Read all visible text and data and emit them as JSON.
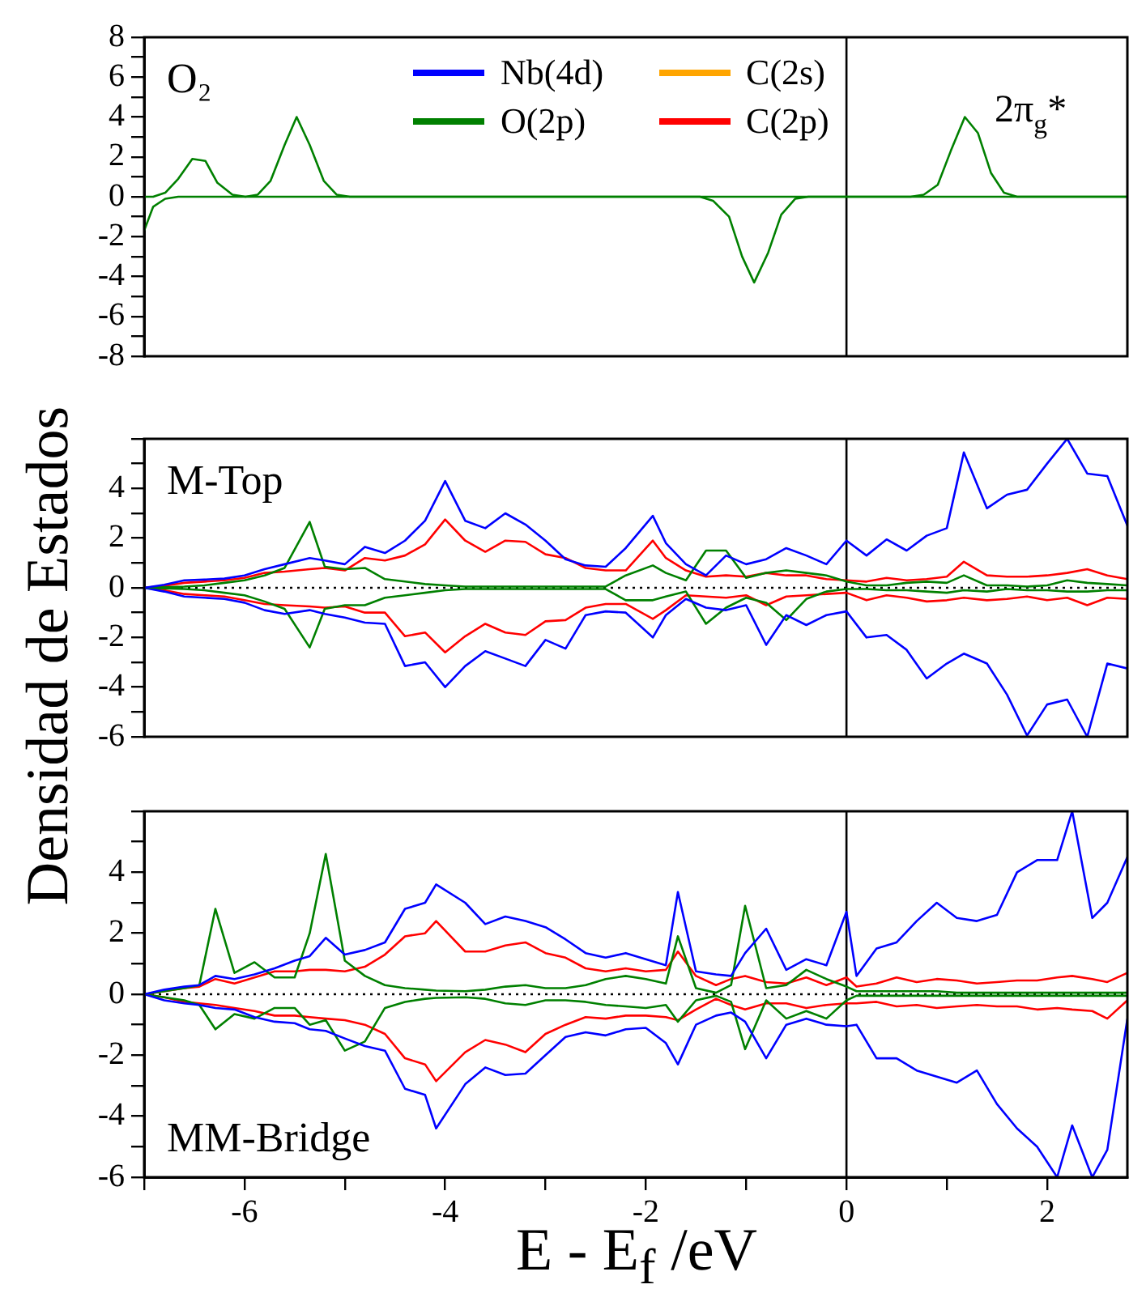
{
  "chart_data": [
    {
      "type": "line",
      "xlim": [
        -7,
        2.8
      ],
      "ylim": [
        -8,
        8
      ],
      "tick_labels": "y",
      "yticks": [
        -8,
        {
          "value": -7,
          "label": null
        },
        -6,
        {
          "value": -5,
          "label": null
        },
        -4,
        {
          "value": -3,
          "label": null
        },
        -2,
        {
          "value": -1,
          "label": null
        },
        0,
        {
          "value": 1,
          "label": null
        },
        2,
        {
          "value": 3,
          "label": null
        },
        4,
        {
          "value": 5,
          "label": null
        },
        6,
        {
          "value": 7,
          "label": null
        },
        8
      ],
      "annotations": [
        "O₂",
        "2π$_{g}$*"
      ],
      "ref_lines": [
        {
          "axis": "x",
          "value": 0,
          "color": "#000000"
        }
      ],
      "series": [
        {
          "color": "#008000",
          "x": [
            -7,
            -6.91,
            -6.79,
            -6.66,
            -6.52,
            -6.39,
            -6.27,
            -6.12,
            -5.99,
            -5.87,
            -5.74,
            -5.6,
            -5.48,
            -5.35,
            -5.21,
            -5.08,
            -4.95,
            0.64,
            0.77,
            0.91,
            1.04,
            1.18,
            1.31,
            1.44,
            1.57,
            1.7,
            2.8
          ],
          "values": [
            0,
            0,
            0.2,
            0.9,
            1.9,
            1.8,
            0.7,
            0.1,
            0,
            0.1,
            0.8,
            2.6,
            4,
            2.6,
            0.8,
            0.1,
            0,
            0,
            0.1,
            0.6,
            2.3,
            4,
            3.2,
            1.2,
            0.2,
            0,
            0
          ]
        },
        {
          "color": "#008000",
          "x": [
            -7,
            -6.91,
            -6.79,
            -6.66,
            -1.46,
            -1.33,
            -1.17,
            -1.04,
            -0.92,
            -0.78,
            -0.65,
            -0.51,
            -0.38,
            2.8
          ],
          "values": [
            -1.7,
            -0.5,
            -0.1,
            0,
            0,
            -0.2,
            -1,
            -3,
            -4.3,
            -2.8,
            -0.9,
            -0.1,
            0,
            0
          ]
        }
      ]
    },
    {
      "type": "line",
      "xlim": [
        -7,
        2.8
      ],
      "ylim": [
        -6,
        6
      ],
      "tick_labels": "y",
      "legend": "top",
      "ylabel": "Densidad de Estados",
      "yticks": [
        -6,
        {
          "value": -5,
          "label": null
        },
        -4,
        {
          "value": -3,
          "label": null
        },
        -2,
        {
          "value": -1,
          "label": null
        },
        0,
        {
          "value": 1,
          "label": null
        },
        2,
        {
          "value": 3,
          "label": null
        },
        4,
        {
          "value": 5,
          "label": null
        },
        {
          "value": 6,
          "label": null
        }
      ],
      "annotations": [
        "M-Top"
      ],
      "ref_lines": [
        {
          "axis": "x",
          "value": 0,
          "color": "#000000"
        },
        {
          "axis": "y",
          "value": 0,
          "color": "#000000",
          "line_style": "dotted"
        }
      ],
      "x": [
        -7,
        -6.8,
        -6.6,
        -6.4,
        -6.2,
        -6,
        -5.8,
        -5.6,
        -5.35,
        -5.2,
        -5,
        -4.8,
        -4.6,
        -4.4,
        -4.2,
        -4,
        -3.8,
        -3.6,
        -3.4,
        -3.2,
        -3,
        -2.8,
        -2.6,
        -2.4,
        -2.2,
        -1.93,
        -1.8,
        -1.6,
        -1.4,
        -1.2,
        -1,
        -0.8,
        -0.6,
        -0.4,
        -0.2,
        0,
        0.2,
        0.4,
        0.6,
        0.8,
        1,
        1.17,
        1.4,
        1.6,
        1.8,
        2,
        2.2,
        2.4,
        2.6,
        2.8
      ],
      "series": [
        {
          "name": "Nb(4d)",
          "color": "#0000ff",
          "values": [
            0,
            0.12,
            0.3,
            0.33,
            0.37,
            0.5,
            0.75,
            0.95,
            1.2,
            1.1,
            0.95,
            1.65,
            1.4,
            1.9,
            2.7,
            4.3,
            2.7,
            2.4,
            3,
            2.55,
            1.9,
            1.15,
            0.9,
            0.85,
            1.6,
            2.9,
            1.8,
            0.95,
            0.5,
            1.3,
            0.95,
            1.15,
            1.6,
            1.3,
            0.95,
            1.9,
            1.3,
            1.95,
            1.5,
            2.1,
            2.4,
            5.45,
            3.2,
            3.75,
            3.95,
            5,
            6,
            4.6,
            4.5,
            2.5
          ]
        },
        {
          "name": "C(2s)",
          "color": "#ffa500",
          "values": [
            null,
            null,
            null,
            null,
            null,
            null,
            null,
            null,
            null,
            null,
            null,
            null,
            null,
            null,
            null,
            null,
            null,
            null,
            null,
            null,
            null,
            null,
            null,
            null,
            null,
            null,
            null,
            null,
            null,
            null,
            null,
            null,
            null,
            null,
            null,
            null,
            null,
            null,
            null,
            null,
            null,
            null,
            null,
            null,
            null,
            null,
            null,
            null,
            null,
            null
          ]
        },
        {
          "name": "O(2p)",
          "color": "#008000",
          "values": [
            0,
            0.02,
            0.05,
            0.1,
            0.2,
            0.3,
            0.5,
            0.8,
            2.65,
            0.85,
            0.75,
            0.8,
            0.35,
            0.25,
            0.15,
            0.1,
            0.05,
            0.05,
            0.05,
            0.05,
            0.05,
            0.05,
            0.05,
            0.05,
            0.5,
            0.9,
            0.6,
            0.3,
            1.5,
            1.5,
            0.4,
            0.6,
            0.7,
            0.6,
            0.5,
            0.25,
            0.1,
            0.1,
            0.2,
            0.25,
            0.2,
            0.5,
            0.1,
            0.1,
            0.05,
            0.1,
            0.3,
            0.2,
            0.15,
            0.1
          ]
        },
        {
          "name": "C(2p)",
          "color": "#ff0000",
          "values": [
            0,
            0.08,
            0.2,
            0.25,
            0.3,
            0.4,
            0.6,
            0.65,
            0.75,
            0.8,
            0.7,
            1.2,
            1.1,
            1.3,
            1.75,
            2.75,
            1.9,
            1.45,
            1.9,
            1.85,
            1.35,
            1.2,
            0.8,
            0.7,
            0.7,
            1.9,
            1.2,
            0.7,
            0.45,
            0.5,
            0.45,
            0.6,
            0.5,
            0.5,
            0.35,
            0.3,
            0.25,
            0.4,
            0.3,
            0.35,
            0.45,
            1.05,
            0.5,
            0.45,
            0.45,
            0.5,
            0.6,
            0.75,
            0.5,
            0.35
          ]
        },
        {
          "color": "#0000ff",
          "values": [
            0,
            -0.15,
            -0.35,
            -0.4,
            -0.45,
            -0.6,
            -0.9,
            -1.05,
            -0.9,
            -1.05,
            -1.2,
            -1.4,
            -1.45,
            -3.15,
            -3,
            -4,
            -3.15,
            -2.55,
            -2.85,
            -3.15,
            -2.1,
            -2.45,
            -1.1,
            -0.95,
            -1,
            -2,
            -1.1,
            -0.45,
            -0.8,
            -0.9,
            -0.7,
            -2.3,
            -1.1,
            -1.5,
            -1.1,
            -0.95,
            -2,
            -1.9,
            -2.5,
            -3.65,
            -3.05,
            -2.65,
            -3.05,
            -4.3,
            -5.95,
            -4.7,
            -4.5,
            -6,
            -3.05,
            -3.25
          ]
        },
        {
          "color": "#008000",
          "values": [
            0,
            -0.02,
            -0.05,
            -0.1,
            -0.2,
            -0.3,
            -0.55,
            -0.85,
            -2.4,
            -0.85,
            -0.7,
            -0.7,
            -0.4,
            -0.3,
            -0.2,
            -0.1,
            -0.05,
            -0.05,
            -0.05,
            -0.05,
            -0.05,
            -0.05,
            -0.05,
            -0.05,
            -0.5,
            -0.5,
            -0.35,
            -0.15,
            -1.45,
            -0.8,
            -0.4,
            -0.6,
            -1.3,
            -0.45,
            -0.15,
            -0.05,
            -0.05,
            -0.1,
            -0.1,
            -0.15,
            -0.2,
            -0.1,
            -0.15,
            -0.05,
            -0.1,
            -0.1,
            -0.15,
            -0.15,
            -0.1,
            -0.1
          ]
        },
        {
          "color": "#ff0000",
          "values": [
            0,
            -0.1,
            -0.25,
            -0.3,
            -0.35,
            -0.5,
            -0.65,
            -0.7,
            -0.75,
            -0.8,
            -0.75,
            -1,
            -1,
            -1.95,
            -1.8,
            -2.6,
            -1.95,
            -1.45,
            -1.8,
            -1.9,
            -1.35,
            -1.3,
            -0.8,
            -0.65,
            -0.65,
            -1.25,
            -0.9,
            -0.3,
            -0.35,
            -0.4,
            -0.3,
            -0.7,
            -0.35,
            -0.3,
            -0.25,
            -0.2,
            -0.5,
            -0.3,
            -0.4,
            -0.55,
            -0.5,
            -0.4,
            -0.5,
            -0.45,
            -0.35,
            -0.5,
            -0.4,
            -0.7,
            -0.4,
            -0.45
          ]
        }
      ]
    },
    {
      "type": "line",
      "xlim": [
        -7,
        2.8
      ],
      "ylim": [
        -6,
        6
      ],
      "xlabel": "E - E$_{f}$ /eV",
      "xticks": [
        {
          "value": -7,
          "label": null
        },
        -6,
        {
          "value": -5,
          "label": null
        },
        -4,
        {
          "value": -3,
          "label": null
        },
        -2,
        {
          "value": -1,
          "label": null
        },
        0,
        {
          "value": 1,
          "label": null
        },
        2
      ],
      "yticks": [
        -6,
        {
          "value": -5,
          "label": null
        },
        -4,
        {
          "value": -3,
          "label": null
        },
        -2,
        {
          "value": -1,
          "label": null
        },
        0,
        {
          "value": 1,
          "label": null
        },
        2,
        {
          "value": 3,
          "label": null
        },
        4,
        {
          "value": 5,
          "label": null
        },
        {
          "value": 6,
          "label": null
        }
      ],
      "annotations": [
        "MM-Bridge"
      ],
      "ref_lines": [
        {
          "axis": "x",
          "value": 0,
          "color": "#000000"
        },
        {
          "axis": "y",
          "value": 0,
          "color": "#000000",
          "line_style": "dotted"
        }
      ],
      "x": [
        -7,
        -6.8,
        -6.6,
        -6.45,
        -6.29,
        -6.1,
        -5.9,
        -5.7,
        -5.5,
        -5.35,
        -5.19,
        -5,
        -4.8,
        -4.6,
        -4.4,
        -4.2,
        -4.09,
        -3.8,
        -3.6,
        -3.4,
        -3.2,
        -3,
        -2.8,
        -2.6,
        -2.4,
        -2.2,
        -2,
        -1.8,
        -1.68,
        -1.5,
        -1.3,
        -1.15,
        -1.01,
        -0.8,
        -0.6,
        -0.4,
        -0.2,
        0,
        0.1,
        0.3,
        0.5,
        0.7,
        0.9,
        1.1,
        1.3,
        1.5,
        1.7,
        1.9,
        2.1,
        2.25,
        2.45,
        2.6,
        2.8
      ],
      "series": [
        {
          "color": "#0000ff",
          "values": [
            0,
            0.15,
            0.25,
            0.3,
            0.6,
            0.5,
            0.65,
            0.85,
            1.1,
            1.25,
            1.85,
            1.3,
            1.45,
            1.7,
            2.8,
            3,
            3.6,
            3,
            2.3,
            2.55,
            2.4,
            2.2,
            1.8,
            1.35,
            1.2,
            1.35,
            1.15,
            0.95,
            3.35,
            0.75,
            0.65,
            0.6,
            1.35,
            2.15,
            0.8,
            1.15,
            0.95,
            2.7,
            0.6,
            1.5,
            1.7,
            2.4,
            3,
            2.5,
            2.4,
            2.6,
            4,
            4.4,
            4.4,
            6,
            2.5,
            3,
            4.5
          ]
        },
        {
          "color": "#008000",
          "values": [
            0,
            0.1,
            0.2,
            0.3,
            2.8,
            0.7,
            1.05,
            0.55,
            0.55,
            2,
            4.6,
            1.1,
            0.6,
            0.3,
            0.2,
            0.15,
            0.12,
            0.1,
            0.15,
            0.25,
            0.3,
            0.2,
            0.2,
            0.3,
            0.5,
            0.6,
            0.5,
            0.35,
            1.9,
            0.2,
            0.05,
            0.3,
            2.9,
            0.2,
            0.3,
            0.8,
            0.5,
            0.25,
            0.1,
            0.1,
            0.1,
            0.1,
            0.1,
            0.05,
            0.05,
            0.05,
            0.05,
            0.05,
            0.05,
            0.05,
            0.05,
            0.05,
            0.05
          ]
        },
        {
          "color": "#ff0000",
          "values": [
            0,
            0.1,
            0.2,
            0.25,
            0.5,
            0.35,
            0.55,
            0.75,
            0.75,
            0.8,
            0.8,
            0.75,
            0.9,
            1.3,
            1.9,
            2,
            2.4,
            1.4,
            1.4,
            1.6,
            1.7,
            1.35,
            1.2,
            0.85,
            0.75,
            0.85,
            0.75,
            0.8,
            1.4,
            0.6,
            0.3,
            0.5,
            0.6,
            0.4,
            0.35,
            0.55,
            0.3,
            0.55,
            0.25,
            0.35,
            0.55,
            0.4,
            0.5,
            0.45,
            0.35,
            0.4,
            0.45,
            0.45,
            0.55,
            0.6,
            0.5,
            0.4,
            0.7
          ]
        },
        {
          "color": "#0000ff",
          "values": [
            0,
            -0.2,
            -0.3,
            -0.35,
            -0.45,
            -0.5,
            -0.75,
            -0.9,
            -0.95,
            -1.15,
            -1.2,
            -1.45,
            -1.7,
            -1.85,
            -3.1,
            -3.3,
            -4.4,
            -2.95,
            -2.4,
            -2.65,
            -2.6,
            -2,
            -1.4,
            -1.25,
            -1.35,
            -1.15,
            -1.1,
            -1.6,
            -2.3,
            -1,
            -0.7,
            -0.6,
            -0.9,
            -2.1,
            -1,
            -0.8,
            -1,
            -1.05,
            -1,
            -2.1,
            -2.1,
            -2.5,
            -2.7,
            -2.9,
            -2.5,
            -3.6,
            -4.4,
            -5,
            -6,
            -4.3,
            -6,
            -5.1,
            -0.8
          ]
        },
        {
          "color": "#008000",
          "values": [
            0,
            -0.1,
            -0.2,
            -0.35,
            -1.15,
            -0.65,
            -0.8,
            -0.45,
            -0.45,
            -1,
            -0.85,
            -1.85,
            -1.55,
            -0.45,
            -0.25,
            -0.15,
            -0.12,
            -0.1,
            -0.15,
            -0.3,
            -0.35,
            -0.2,
            -0.2,
            -0.25,
            -0.35,
            -0.4,
            -0.45,
            -0.35,
            -0.9,
            -0.2,
            -0.05,
            -0.25,
            -1.8,
            -0.2,
            -0.8,
            -0.55,
            -0.8,
            -0.2,
            -0.05,
            -0.05,
            -0.05,
            -0.05,
            -0.05,
            -0.05,
            -0.05,
            -0.05,
            -0.05,
            -0.05,
            -0.05,
            -0.05,
            -0.05,
            -0.05,
            -0.05
          ]
        },
        {
          "color": "#ff0000",
          "values": [
            0,
            -0.1,
            -0.25,
            -0.3,
            -0.35,
            -0.45,
            -0.55,
            -0.7,
            -0.7,
            -0.75,
            -0.8,
            -0.85,
            -1,
            -1.3,
            -2.1,
            -2.3,
            -2.85,
            -1.9,
            -1.5,
            -1.65,
            -1.9,
            -1.3,
            -1,
            -0.75,
            -0.8,
            -0.7,
            -0.7,
            -0.75,
            -0.85,
            -0.5,
            -0.15,
            -0.35,
            -0.5,
            -0.3,
            -0.3,
            -0.45,
            -0.35,
            -0.3,
            -0.3,
            -0.25,
            -0.4,
            -0.35,
            -0.45,
            -0.4,
            -0.35,
            -0.4,
            -0.4,
            -0.5,
            -0.45,
            -0.5,
            -0.55,
            -0.8,
            -0.2
          ]
        }
      ]
    }
  ]
}
